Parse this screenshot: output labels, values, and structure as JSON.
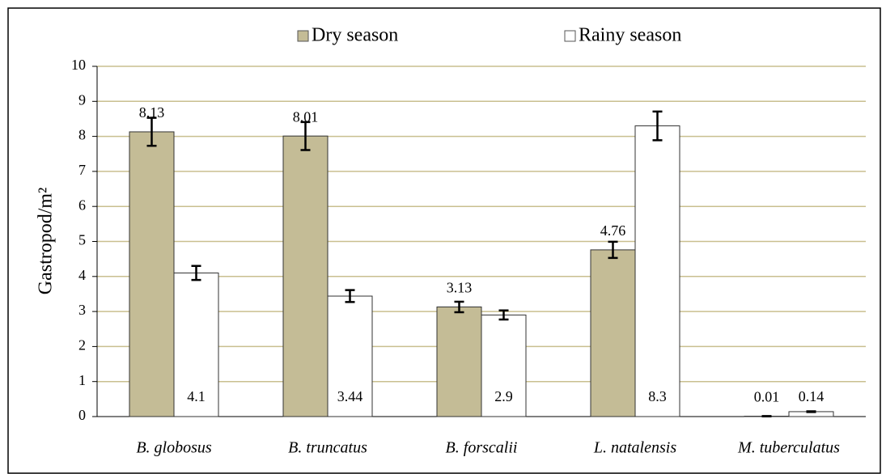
{
  "chart_data": {
    "type": "bar",
    "y_label": "Gastropod/m²",
    "categories": [
      "B. globosus",
      "B. truncatus",
      "B. forscalii",
      "L. natalensis",
      "M. tuberculatus"
    ],
    "series": [
      {
        "name": "Dry season",
        "color": "#c4bc96",
        "values": [
          8.13,
          8.01,
          3.13,
          4.76,
          0.01
        ],
        "errors": [
          0.4,
          0.4,
          0.15,
          0.23,
          0.005
        ]
      },
      {
        "name": "Rainy season",
        "color": "#ffffff",
        "values": [
          4.1,
          3.44,
          2.9,
          8.3,
          0.14
        ],
        "errors": [
          0.2,
          0.17,
          0.13,
          0.41,
          0.01
        ]
      }
    ],
    "ylim": [
      0,
      10
    ],
    "yticks": [
      0,
      1,
      2,
      3,
      4,
      5,
      6,
      7,
      8,
      9,
      10
    ],
    "grid": true,
    "legend": "top"
  }
}
